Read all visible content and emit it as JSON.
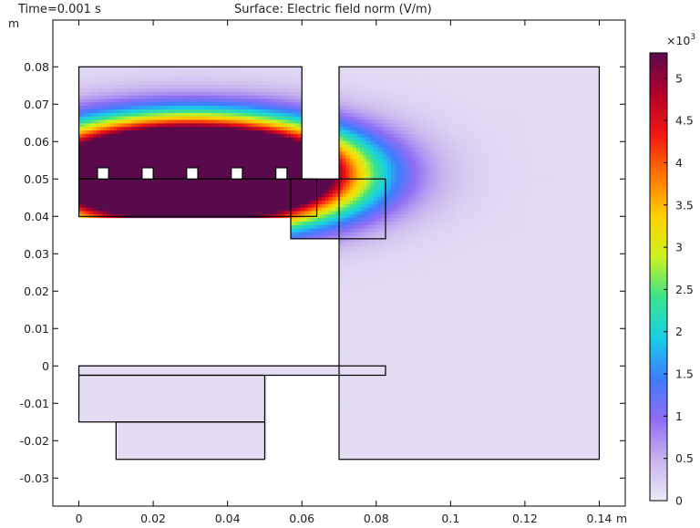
{
  "header": {
    "time_label": "Time=0.001 s",
    "title": "Surface: Electric field norm (V/m)"
  },
  "chart_data": {
    "type": "heatmap",
    "title": "Surface: Electric field norm (V/m)",
    "subtitle": "Time=0.001 s",
    "xlabel": "m",
    "ylabel": "m",
    "xlim": [
      -0.007,
      0.147
    ],
    "ylim": [
      -0.0375,
      0.0925
    ],
    "x_ticks": [
      0,
      0.02,
      0.04,
      0.06,
      0.08,
      0.1,
      0.12,
      0.14
    ],
    "x_tick_labels": [
      "0",
      "0.02",
      "0.04",
      "0.06",
      "0.08",
      "0.1",
      "0.12",
      "0.14"
    ],
    "y_ticks": [
      0.08,
      0.07,
      0.06,
      0.05,
      0.04,
      0.03,
      0.02,
      0.01,
      0,
      -0.01,
      -0.02,
      -0.03
    ],
    "y_tick_labels": [
      "0.08",
      "0.07",
      "0.06",
      "0.05",
      "0.04",
      "0.03",
      "0.02",
      "0.01",
      "0",
      "-0.01",
      "-0.02",
      "-0.03"
    ],
    "colorbar": {
      "multiplier_label": "×10",
      "multiplier_exp": "3",
      "range": [
        0,
        5.3
      ],
      "ticks": [
        0,
        0.5,
        1,
        1.5,
        2,
        2.5,
        3,
        3.5,
        4,
        4.5,
        5
      ],
      "tick_labels": [
        "0",
        "0.5",
        "1",
        "1.5",
        "2",
        "2.5",
        "3",
        "3.5",
        "4",
        "4.5",
        "5"
      ],
      "colors": [
        "#ece9f5",
        "#c7b4ee",
        "#8d6ef4",
        "#3f7bff",
        "#18cfe6",
        "#3be38a",
        "#cef21f",
        "#ffd000",
        "#ff7400",
        "#f31616",
        "#b3002a",
        "#5a0a4c"
      ]
    },
    "field": {
      "background_value": 0.12,
      "sources": [
        {
          "x": 0.0065,
          "y": 0.0515,
          "peak": 2.9
        },
        {
          "x": 0.0185,
          "y": 0.0515,
          "peak": 4.5
        },
        {
          "x": 0.0305,
          "y": 0.0515,
          "peak": 5.3
        },
        {
          "x": 0.0425,
          "y": 0.0515,
          "peak": 4.5
        },
        {
          "x": 0.0545,
          "y": 0.0515,
          "peak": 2.9
        }
      ],
      "spread_x": 0.028,
      "spread_y": 0.012
    },
    "geometry": {
      "rectangles": [
        {
          "name": "left-upper-domain",
          "x0": 0,
          "y0": 0.05,
          "x1": 0.06,
          "y1": 0.08
        },
        {
          "name": "right-domain",
          "x0": 0.07,
          "y0": -0.025,
          "x1": 0.14,
          "y1": 0.08
        },
        {
          "name": "middle-plate",
          "x0": 0,
          "y0": 0.04,
          "x1": 0.064,
          "y1": 0.05
        },
        {
          "name": "side-block",
          "x0": 0.057,
          "y0": 0.034,
          "x1": 0.0825,
          "y1": 0.05
        },
        {
          "name": "thin-plate",
          "x0": 0,
          "y0": -0.0025,
          "x1": 0.0825,
          "y1": 0
        },
        {
          "name": "lower-left-box",
          "x0": 0,
          "y0": -0.015,
          "x1": 0.05,
          "y1": -0.0025
        },
        {
          "name": "bottom-box",
          "x0": 0.01,
          "y0": -0.025,
          "x1": 0.05,
          "y1": -0.015
        }
      ],
      "electrodes": [
        {
          "x": 0.0065,
          "y": 0.0515
        },
        {
          "x": 0.0185,
          "y": 0.0515
        },
        {
          "x": 0.0305,
          "y": 0.0515
        },
        {
          "x": 0.0425,
          "y": 0.0515
        },
        {
          "x": 0.0545,
          "y": 0.0515
        }
      ],
      "electrode_size": 0.003
    }
  }
}
